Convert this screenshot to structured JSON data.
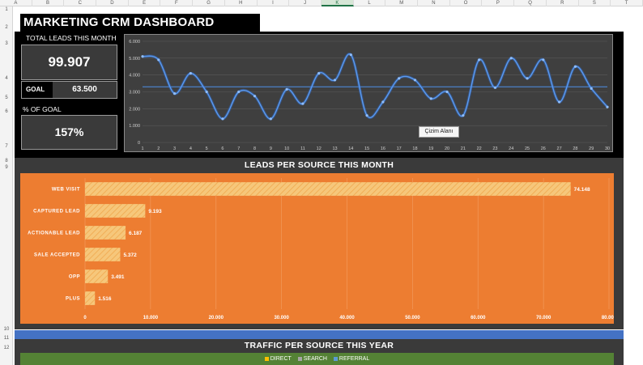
{
  "spreadsheet": {
    "columns": [
      "A",
      "B",
      "C",
      "D",
      "E",
      "F",
      "G",
      "H",
      "I",
      "J",
      "K",
      "L",
      "M",
      "N",
      "O",
      "P",
      "Q",
      "R",
      "S",
      "T"
    ],
    "active_column": "K",
    "rows": [
      "1",
      "2",
      "3",
      "4",
      "5",
      "6",
      "7",
      "8",
      "9",
      "10",
      "11",
      "12"
    ]
  },
  "dashboard": {
    "title": "MARKETING CRM DASHBOARD TEMPLATE",
    "total_leads_label": "TOTAL LEADS THIS MONTH",
    "total_leads_value": "99.907",
    "goal_label": "GOAL",
    "goal_value": "63.500",
    "pct_goal_label": "% OF GOAL",
    "pct_goal_value": "157%",
    "chart_tooltip": "Çizim Alanı",
    "leads_section_title": "LEADS PER SOURCE THIS MONTH",
    "traffic_section_title": "TRAFFIC PER SOURCE THIS YEAR"
  },
  "colors": {
    "orange": "#ed7d31",
    "line": "#4f8fe8",
    "bar_fill": "#f6c77b",
    "green": "#548235",
    "blue_band": "#4472c4",
    "direct": "#ffc000",
    "search": "#a5a5a5",
    "referral": "#5b9bd5"
  },
  "chart_data": [
    {
      "type": "line",
      "x": [
        1,
        2,
        3,
        4,
        5,
        6,
        7,
        8,
        9,
        10,
        11,
        12,
        13,
        14,
        15,
        16,
        17,
        18,
        19,
        20,
        21,
        22,
        23,
        24,
        25,
        26,
        27,
        28,
        29,
        30
      ],
      "series": [
        {
          "values": [
            5100,
            4900,
            2900,
            4100,
            3000,
            1400,
            3000,
            2750,
            1400,
            3150,
            2300,
            4100,
            3700,
            5200,
            1600,
            2400,
            3800,
            3700,
            2600,
            3000,
            1600,
            4900,
            3250,
            5000,
            3800,
            4900,
            2400,
            4500,
            3200,
            2100
          ]
        },
        {
          "values": [
            3300,
            3300,
            3300,
            3300,
            3300,
            3300,
            3300,
            3300,
            3300,
            3300,
            3300,
            3300,
            3300,
            3300,
            3300,
            3300,
            3300,
            3300,
            3300,
            3300,
            3300,
            3300,
            3300,
            3300,
            3300,
            3300,
            3300,
            3300,
            3300,
            3300
          ]
        }
      ],
      "y_ticks": [
        "0",
        "1.000",
        "2.000",
        "3.000",
        "4.000",
        "5.000",
        "6.000"
      ],
      "ylim": [
        0,
        6000
      ],
      "grid": true
    },
    {
      "type": "bar",
      "orientation": "horizontal",
      "categories": [
        "WEB VISIT",
        "CAPTURED LEAD",
        "ACTIONABLE LEAD",
        "SALE ACCEPTED",
        "OPP",
        "PLUS"
      ],
      "values": [
        74148,
        9193,
        6187,
        5372,
        3491,
        1516
      ],
      "value_labels": [
        "74.148",
        "9.193",
        "6.187",
        "5.372",
        "3.491",
        "1.516"
      ],
      "x_ticks": [
        "0",
        "10.000",
        "20.000",
        "30.000",
        "40.000",
        "50.000",
        "60.000",
        "70.000",
        "80.000"
      ],
      "xlim": [
        0,
        80000
      ],
      "grid": true
    },
    {
      "type": "bar",
      "legend": [
        "DIRECT",
        "SEARCH",
        "REFERRAL"
      ],
      "legend_position": "top"
    }
  ]
}
